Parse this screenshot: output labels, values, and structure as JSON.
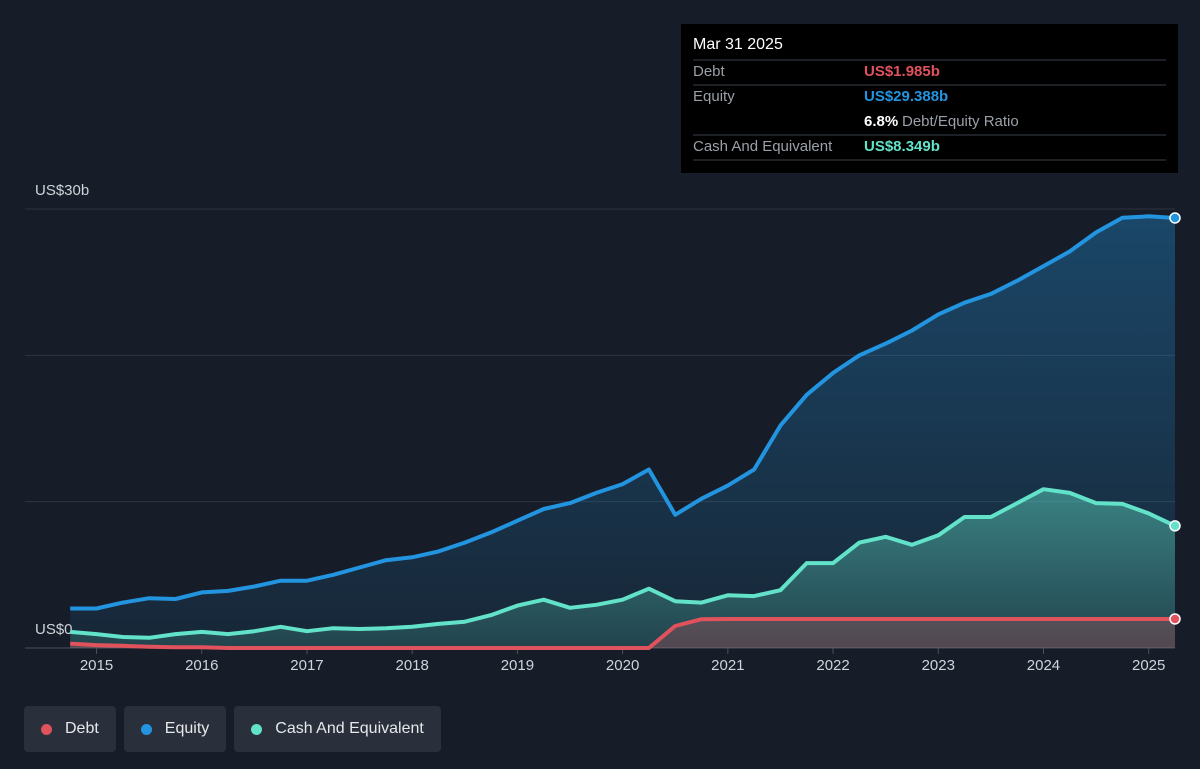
{
  "chart_data": {
    "type": "line",
    "x": [
      2014.75,
      2015,
      2015.25,
      2015.5,
      2015.75,
      2016,
      2016.25,
      2016.5,
      2016.75,
      2017,
      2017.25,
      2017.5,
      2017.75,
      2018,
      2018.25,
      2018.5,
      2018.75,
      2019,
      2019.25,
      2019.5,
      2019.75,
      2020,
      2020.25,
      2020.5,
      2020.75,
      2021,
      2021.25,
      2021.5,
      2021.75,
      2022,
      2022.25,
      2022.5,
      2022.75,
      2023,
      2023.25,
      2023.5,
      2023.75,
      2024,
      2024.25,
      2024.5,
      2024.75,
      2025,
      2025.25
    ],
    "series": [
      {
        "name": "Debt",
        "color": "#e0525c",
        "values": [
          0.3,
          0.2,
          0.15,
          0.08,
          0.05,
          0.05,
          0,
          0,
          0,
          0,
          0,
          0,
          0,
          0,
          0,
          0,
          0,
          0,
          0,
          0,
          0,
          0,
          0,
          1.5,
          1.97,
          1.98,
          1.98,
          1.98,
          1.98,
          1.98,
          1.98,
          1.98,
          1.98,
          1.98,
          1.98,
          1.98,
          1.98,
          1.98,
          1.98,
          1.98,
          1.98,
          1.98,
          1.985
        ]
      },
      {
        "name": "Equity",
        "color": "#2394df",
        "values": [
          2.7,
          2.7,
          3.1,
          3.4,
          3.35,
          3.8,
          3.9,
          4.2,
          4.6,
          4.6,
          5.0,
          5.5,
          6.0,
          6.2,
          6.6,
          7.2,
          7.9,
          8.7,
          9.5,
          9.9,
          10.6,
          11.2,
          12.2,
          9.1,
          10.2,
          11.1,
          12.2,
          15.2,
          17.3,
          18.8,
          20.0,
          20.8,
          21.7,
          22.8,
          23.6,
          24.2,
          25.1,
          26.1,
          27.1,
          28.4,
          29.4,
          29.5,
          29.388
        ]
      },
      {
        "name": "Cash And Equivalent",
        "color": "#62e3c9",
        "values": [
          1.1,
          0.95,
          0.75,
          0.7,
          0.95,
          1.1,
          0.95,
          1.15,
          1.45,
          1.15,
          1.35,
          1.3,
          1.35,
          1.45,
          1.65,
          1.8,
          2.25,
          2.9,
          3.3,
          2.75,
          2.95,
          3.3,
          4.05,
          3.2,
          3.1,
          3.6,
          3.55,
          3.95,
          5.8,
          5.8,
          7.2,
          7.6,
          7.05,
          7.7,
          8.95,
          8.95,
          9.9,
          10.85,
          10.6,
          9.9,
          9.85,
          9.2,
          8.349
        ]
      }
    ],
    "xlim": [
      2014.32,
      2025.25
    ],
    "xticks": [
      2015,
      2016,
      2017,
      2018,
      2019,
      2020,
      2021,
      2022,
      2023,
      2024,
      2025
    ],
    "ylim": [
      0,
      30
    ],
    "yticks": [
      {
        "value": 0,
        "label": "US$0"
      },
      {
        "value": 10
      },
      {
        "value": 20
      },
      {
        "value": 30,
        "label": "US$30b"
      }
    ],
    "grid": true,
    "tooltip": {
      "date": "Mar 31 2025",
      "debt": "US$1.985b",
      "equity": "US$29.388b",
      "ratio": "6.8%",
      "ratio_label": "Debt/Equity Ratio",
      "cash": "US$8.349b"
    }
  }
}
